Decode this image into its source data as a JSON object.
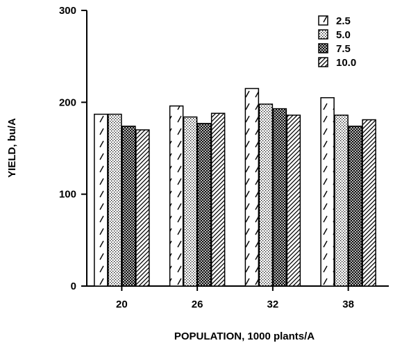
{
  "chart_data": {
    "type": "bar",
    "title": "",
    "xlabel": "POPULATION, 1000 plants/A",
    "ylabel": "YIELD, bu/A",
    "categories": [
      "20",
      "26",
      "32",
      "38"
    ],
    "ylim": [
      0,
      300
    ],
    "yticks": [
      0,
      100,
      200,
      300
    ],
    "grid": false,
    "legend_position": "top-right",
    "series": [
      {
        "name": "2.5",
        "pattern": "dashes",
        "values": [
          187,
          196,
          215,
          205
        ]
      },
      {
        "name": "5.0",
        "pattern": "dots",
        "values": [
          187,
          184,
          198,
          186
        ]
      },
      {
        "name": "7.5",
        "pattern": "crosshatch",
        "values": [
          174,
          177,
          193,
          174
        ]
      },
      {
        "name": "10.0",
        "pattern": "diagonal",
        "values": [
          170,
          188,
          186,
          181
        ]
      }
    ]
  }
}
